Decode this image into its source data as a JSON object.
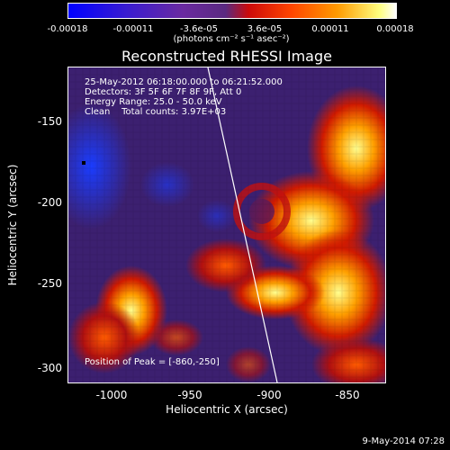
{
  "colorbar": {
    "ticks": [
      "-0.00018",
      "-0.00011",
      "-3.6e-05",
      "3.6e-05",
      "0.00011",
      "0.00018"
    ],
    "unit": "(photons cm⁻² s⁻¹ asec⁻²)"
  },
  "title": "Reconstructed RHESSI Image",
  "info": {
    "time": "25-May-2012 06:18:00.000 to 06:21:52.000",
    "detectors": "Detectors: 3F 5F 6F 7F 8F 9F, Att 0",
    "energy": "Energy Range: 25.0 - 50.0 keV",
    "clean": "Clean    Total counts: 3.97E+03",
    "peak": "Position of Peak = [-860,-250]"
  },
  "axes": {
    "xlabel": "Heliocentric X (arcsec)",
    "ylabel": "Heliocentric Y (arcsec)",
    "xticks": [
      "-1000",
      "-950",
      "-900",
      "-850"
    ],
    "yticks": [
      "-150",
      "-200",
      "-250",
      "-300"
    ]
  },
  "timestamp": "9-May-2014 07:28",
  "colors": {
    "background": "#000000",
    "text": "#ffffff",
    "limb_line": "#ffffff"
  }
}
